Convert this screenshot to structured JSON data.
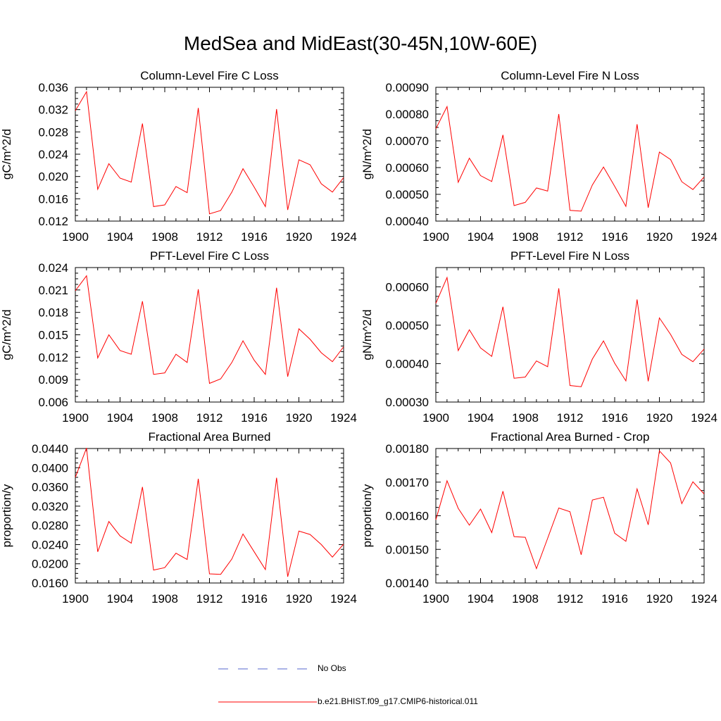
{
  "title": "MedSea and MidEast(30-45N,10W-60E)",
  "colors": {
    "series": "#ff0000",
    "obs": "#5566cc",
    "axis": "#000000"
  },
  "legend": [
    {
      "label": "No Obs",
      "style": "dashed",
      "color": "#5566cc"
    },
    {
      "label": "b.e21.BHIST.f09_g17.CMIP6-historical.011",
      "style": "solid",
      "color": "#ff0000"
    }
  ],
  "chart_data": [
    {
      "type": "line",
      "title": "Column-Level Fire C Loss",
      "ylabel": "gC/m^2/d",
      "xlim": [
        1900,
        1924
      ],
      "xticks": [
        "1900",
        "1904",
        "1908",
        "1912",
        "1916",
        "1920",
        "1924"
      ],
      "ylim": [
        0.012,
        0.036
      ],
      "yticks": [
        "0.012",
        "0.016",
        "0.020",
        "0.024",
        "0.028",
        "0.032",
        "0.036"
      ],
      "x": [
        1900,
        1901,
        1902,
        1903,
        1904,
        1905,
        1906,
        1907,
        1908,
        1909,
        1910,
        1911,
        1912,
        1913,
        1914,
        1915,
        1916,
        1917,
        1918,
        1919,
        1920,
        1921,
        1922,
        1923,
        1924
      ],
      "series": [
        {
          "name": "b.e21.BHIST.f09_g17.CMIP6-historical.011",
          "values": [
            0.0318,
            0.0352,
            0.0177,
            0.0223,
            0.0197,
            0.019,
            0.0295,
            0.0146,
            0.0149,
            0.0182,
            0.0171,
            0.0323,
            0.0133,
            0.0139,
            0.0172,
            0.0214,
            0.0181,
            0.0146,
            0.0321,
            0.014,
            0.023,
            0.0221,
            0.0187,
            0.0172,
            0.0198
          ]
        }
      ]
    },
    {
      "type": "line",
      "title": "Column-Level Fire N Loss",
      "ylabel": "gN/m^2/d",
      "xlim": [
        1900,
        1924
      ],
      "xticks": [
        "1900",
        "1904",
        "1908",
        "1912",
        "1916",
        "1920",
        "1924"
      ],
      "ylim": [
        0.0004,
        0.0009
      ],
      "yticks": [
        "0.00040",
        "0.00050",
        "0.00060",
        "0.00070",
        "0.00080",
        "0.00090"
      ],
      "x": [
        1900,
        1901,
        1902,
        1903,
        1904,
        1905,
        1906,
        1907,
        1908,
        1909,
        1910,
        1911,
        1912,
        1913,
        1914,
        1915,
        1916,
        1917,
        1918,
        1919,
        1920,
        1921,
        1922,
        1923,
        1924
      ],
      "series": [
        {
          "name": "b.e21.BHIST.f09_g17.CMIP6-historical.011",
          "values": [
            0.000745,
            0.000828,
            0.000545,
            0.000635,
            0.00057,
            0.000548,
            0.000722,
            0.000458,
            0.00047,
            0.000524,
            0.000512,
            0.0008,
            0.00044,
            0.000437,
            0.000535,
            0.000602,
            0.00053,
            0.000455,
            0.000762,
            0.00045,
            0.000658,
            0.00063,
            0.000547,
            0.000518,
            0.000565
          ]
        }
      ]
    },
    {
      "type": "line",
      "title": "PFT-Level Fire C Loss",
      "ylabel": "gC/m^2/d",
      "xlim": [
        1900,
        1924
      ],
      "xticks": [
        "1900",
        "1904",
        "1908",
        "1912",
        "1916",
        "1920",
        "1924"
      ],
      "ylim": [
        0.006,
        0.024
      ],
      "yticks": [
        "0.006",
        "0.009",
        "0.012",
        "0.015",
        "0.018",
        "0.021",
        "0.024"
      ],
      "x": [
        1900,
        1901,
        1902,
        1903,
        1904,
        1905,
        1906,
        1907,
        1908,
        1909,
        1910,
        1911,
        1912,
        1913,
        1914,
        1915,
        1916,
        1917,
        1918,
        1919,
        1920,
        1921,
        1922,
        1923,
        1924
      ],
      "series": [
        {
          "name": "b.e21.BHIST.f09_g17.CMIP6-historical.011",
          "values": [
            0.0209,
            0.0229,
            0.0119,
            0.015,
            0.0129,
            0.0124,
            0.0195,
            0.0097,
            0.0099,
            0.0124,
            0.0113,
            0.0211,
            0.0085,
            0.0091,
            0.0113,
            0.0142,
            0.0116,
            0.0097,
            0.0213,
            0.0094,
            0.0158,
            0.0144,
            0.0126,
            0.0114,
            0.0134
          ]
        }
      ]
    },
    {
      "type": "line",
      "title": "PFT-Level Fire N Loss",
      "ylabel": "gN/m^2/d",
      "xlim": [
        1900,
        1924
      ],
      "xticks": [
        "1900",
        "1904",
        "1908",
        "1912",
        "1916",
        "1920",
        "1924"
      ],
      "ylim": [
        0.0003,
        0.00065
      ],
      "yticks": [
        "0.00030",
        "0.00040",
        "0.00050",
        "0.00060"
      ],
      "x": [
        1900,
        1901,
        1902,
        1903,
        1904,
        1905,
        1906,
        1907,
        1908,
        1909,
        1910,
        1911,
        1912,
        1913,
        1914,
        1915,
        1916,
        1917,
        1918,
        1919,
        1920,
        1921,
        1922,
        1923,
        1924
      ],
      "series": [
        {
          "name": "b.e21.BHIST.f09_g17.CMIP6-historical.011",
          "values": [
            0.000557,
            0.000624,
            0.000434,
            0.000488,
            0.000441,
            0.000419,
            0.000548,
            0.000362,
            0.000365,
            0.000407,
            0.000392,
            0.000596,
            0.000343,
            0.00034,
            0.000412,
            0.000459,
            0.000401,
            0.000355,
            0.000567,
            0.000354,
            0.000519,
            0.000476,
            0.000424,
            0.000405,
            0.000438
          ]
        }
      ]
    },
    {
      "type": "line",
      "title": "Fractional Area Burned",
      "ylabel": "proportion/y",
      "xlim": [
        1900,
        1924
      ],
      "xticks": [
        "1900",
        "1904",
        "1908",
        "1912",
        "1916",
        "1920",
        "1924"
      ],
      "ylim": [
        0.016,
        0.044
      ],
      "yticks": [
        "0.0160",
        "0.0200",
        "0.0240",
        "0.0280",
        "0.0320",
        "0.0360",
        "0.0400",
        "0.0440"
      ],
      "x": [
        1900,
        1901,
        1902,
        1903,
        1904,
        1905,
        1906,
        1907,
        1908,
        1909,
        1910,
        1911,
        1912,
        1913,
        1914,
        1915,
        1916,
        1917,
        1918,
        1919,
        1920,
        1921,
        1922,
        1923,
        1924
      ],
      "series": [
        {
          "name": "b.e21.BHIST.f09_g17.CMIP6-historical.011",
          "values": [
            0.038,
            0.0441,
            0.0225,
            0.0288,
            0.0258,
            0.0243,
            0.036,
            0.0187,
            0.0192,
            0.0222,
            0.0209,
            0.0377,
            0.0179,
            0.0178,
            0.021,
            0.0262,
            0.0225,
            0.0188,
            0.0379,
            0.0173,
            0.0268,
            0.0261,
            0.024,
            0.0214,
            0.0241
          ]
        }
      ]
    },
    {
      "type": "line",
      "title": "Fractional Area Burned - Crop",
      "ylabel": "proportion/y",
      "xlim": [
        1900,
        1924
      ],
      "xticks": [
        "1900",
        "1904",
        "1908",
        "1912",
        "1916",
        "1920",
        "1924"
      ],
      "ylim": [
        0.0014,
        0.0018
      ],
      "yticks": [
        "0.00140",
        "0.00150",
        "0.00160",
        "0.00170",
        "0.00180"
      ],
      "x": [
        1900,
        1901,
        1902,
        1903,
        1904,
        1905,
        1906,
        1907,
        1908,
        1909,
        1910,
        1911,
        1912,
        1913,
        1914,
        1915,
        1916,
        1917,
        1918,
        1919,
        1920,
        1921,
        1922,
        1923,
        1924
      ],
      "series": [
        {
          "name": "b.e21.BHIST.f09_g17.CMIP6-historical.011",
          "values": [
            0.001588,
            0.001704,
            0.001622,
            0.001572,
            0.00162,
            0.00155,
            0.001673,
            0.001538,
            0.001536,
            0.001443,
            0.001533,
            0.001623,
            0.001612,
            0.001484,
            0.001647,
            0.001655,
            0.001548,
            0.001524,
            0.00168,
            0.001573,
            0.001793,
            0.001757,
            0.001636,
            0.001701,
            0.001665
          ]
        }
      ]
    }
  ]
}
